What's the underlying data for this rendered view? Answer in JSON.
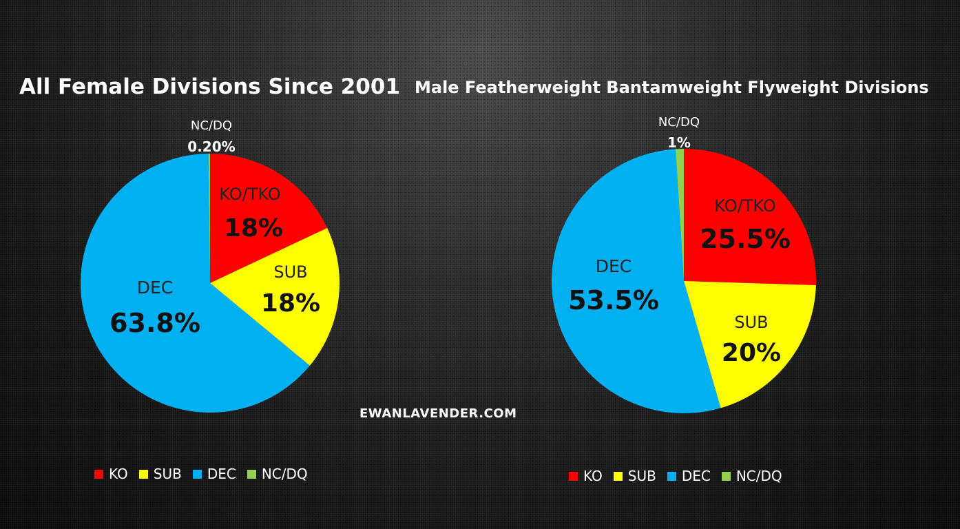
{
  "watermark": "EWANLAVENDER.COM",
  "colors": {
    "ko": "#ff0000",
    "sub": "#ffff00",
    "dec": "#00b0f0",
    "ncdq": "#92d050"
  },
  "chart_data": [
    {
      "type": "pie",
      "title": "All Female Divisions Since 2001",
      "slices": [
        {
          "key": "ko",
          "label": "KO/TKO",
          "value": 18,
          "value_label": "18%"
        },
        {
          "key": "sub",
          "label": "SUB",
          "value": 18,
          "value_label": "18%"
        },
        {
          "key": "dec",
          "label": "DEC",
          "value": 63.8,
          "value_label": "63.8%"
        },
        {
          "key": "ncdq",
          "label": "NC/DQ",
          "value": 0.2,
          "value_label": "0.20%"
        }
      ],
      "legend": [
        "KO",
        "SUB",
        "DEC",
        "NC/DQ"
      ],
      "legend_placement": "bottom"
    },
    {
      "type": "pie",
      "title": "Male Featherweight Bantamweight Flyweight Divisions",
      "slices": [
        {
          "key": "ko",
          "label": "KO/TKO",
          "value": 25.5,
          "value_label": "25.5%"
        },
        {
          "key": "sub",
          "label": "SUB",
          "value": 20,
          "value_label": "20%"
        },
        {
          "key": "dec",
          "label": "DEC",
          "value": 53.5,
          "value_label": "53.5%"
        },
        {
          "key": "ncdq",
          "label": "NC/DQ",
          "value": 1,
          "value_label": "1%"
        }
      ],
      "legend": [
        "KO",
        "SUB",
        "DEC",
        "NC/DQ"
      ],
      "legend_placement": "bottom"
    }
  ]
}
